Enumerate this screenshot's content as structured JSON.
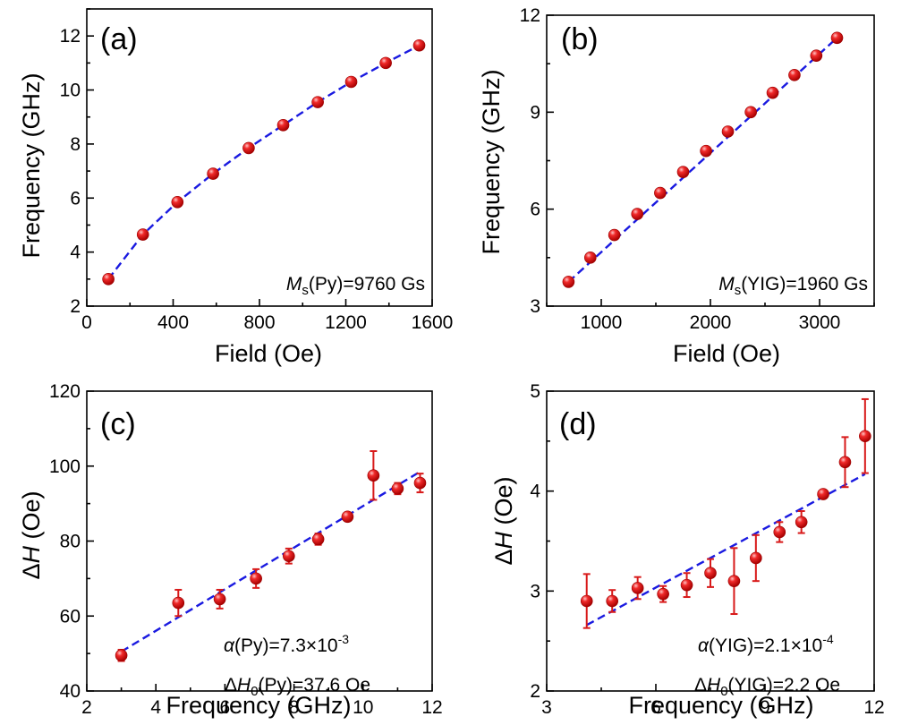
{
  "colors": {
    "marker": "#e01818",
    "marker_highlight": "#ffb0b0",
    "fit_line": "#1a1ae0",
    "axis": "#000000",
    "error_bar": "#d81a1a"
  },
  "chart_data": [
    {
      "id": "a",
      "type": "scatter",
      "panel_label": "(a)",
      "xlabel": "Field (Oe)",
      "ylabel": "Frequency (GHz)",
      "xlim": [
        0,
        1600
      ],
      "ylim": [
        2,
        13
      ],
      "xticks": [
        0,
        400,
        800,
        1200,
        1600
      ],
      "yticks": [
        2,
        4,
        6,
        8,
        10,
        12
      ],
      "x": [
        100,
        260,
        420,
        585,
        750,
        910,
        1070,
        1225,
        1385,
        1540
      ],
      "y": [
        3.0,
        4.65,
        5.85,
        6.9,
        7.85,
        8.7,
        9.55,
        10.3,
        11.0,
        11.65
      ],
      "fit": {
        "style": "dashed",
        "x": [
          100,
          260,
          420,
          585,
          750,
          910,
          1070,
          1225,
          1385,
          1540
        ],
        "y": [
          3.0,
          4.65,
          5.85,
          6.9,
          7.85,
          8.7,
          9.55,
          10.3,
          11.0,
          11.65
        ]
      },
      "annotation": {
        "symbol": "M",
        "subscript": "s",
        "rest": "(Py)=9760 Gs"
      }
    },
    {
      "id": "b",
      "type": "scatter",
      "panel_label": "(b)",
      "xlabel": "Field (Oe)",
      "ylabel": "Frequency (GHz)",
      "xlim": [
        500,
        3500
      ],
      "ylim": [
        3,
        12
      ],
      "xticks": [
        1000,
        2000,
        3000
      ],
      "yticks": [
        3,
        6,
        9,
        12
      ],
      "x": [
        700,
        900,
        1120,
        1330,
        1540,
        1750,
        1960,
        2160,
        2370,
        2570,
        2770,
        2970,
        3160
      ],
      "y": [
        3.75,
        4.5,
        5.2,
        5.85,
        6.5,
        7.15,
        7.8,
        8.4,
        9.0,
        9.6,
        10.15,
        10.75,
        11.3
      ],
      "fit": {
        "style": "dashed",
        "x": [
          700,
          3160
        ],
        "y": [
          3.75,
          11.3
        ]
      },
      "annotation": {
        "symbol": "M",
        "subscript": "s",
        "rest": "(YIG)=1960 Gs"
      }
    },
    {
      "id": "c",
      "type": "scatter",
      "panel_label": "(c)",
      "xlabel": "Frequency (GHz)",
      "ylabel": "ΔH (Oe)",
      "xlim": [
        2,
        12
      ],
      "ylim": [
        40,
        120
      ],
      "xticks": [
        2,
        4,
        6,
        8,
        10,
        12
      ],
      "yticks": [
        40,
        60,
        80,
        100,
        120
      ],
      "x": [
        3.0,
        4.65,
        5.85,
        6.9,
        7.85,
        8.7,
        9.55,
        10.3,
        11.0,
        11.65
      ],
      "y": [
        49.5,
        63.5,
        64.5,
        70.0,
        76.0,
        80.5,
        86.5,
        97.5,
        94.0,
        95.5
      ],
      "yerr": [
        1.5,
        3.5,
        2.5,
        2.5,
        2.0,
        1.5,
        1.0,
        6.5,
        1.5,
        2.5
      ],
      "fit": {
        "style": "dashed",
        "x": [
          3.0,
          11.65
        ],
        "y": [
          50.5,
          98.5
        ]
      },
      "annotation": {
        "line1": {
          "symbol": "α",
          "rest": "(Py)=7.3×10",
          "sup": "-3"
        },
        "line2": {
          "prefix": "Δ",
          "symbol": "H",
          "subscript": "0",
          "rest": "(Py)=37.6 Oe"
        }
      }
    },
    {
      "id": "d",
      "type": "scatter",
      "panel_label": "(d)",
      "xlabel": "Frequency (GHz)",
      "ylabel": "ΔH (Oe)",
      "xlim": [
        3,
        12
      ],
      "ylim": [
        2,
        5
      ],
      "xticks": [
        3,
        6,
        9,
        12
      ],
      "yticks": [
        2,
        3,
        4,
        5
      ],
      "x": [
        4.1,
        4.8,
        5.5,
        6.2,
        6.85,
        7.5,
        8.15,
        8.75,
        9.4,
        10.0,
        10.6,
        11.2,
        11.75
      ],
      "y": [
        2.9,
        2.9,
        3.03,
        2.97,
        3.06,
        3.18,
        3.1,
        3.33,
        3.59,
        3.69,
        3.97,
        4.29,
        4.55
      ],
      "yerr": [
        0.27,
        0.11,
        0.11,
        0.08,
        0.12,
        0.14,
        0.33,
        0.23,
        0.1,
        0.11,
        0.03,
        0.25,
        0.37
      ],
      "fit": {
        "style": "dashed",
        "x": [
          4.1,
          11.75
        ],
        "y": [
          2.66,
          4.17
        ]
      },
      "annotation": {
        "line1": {
          "symbol": "α",
          "rest": "(YIG)=2.1×10",
          "sup": "-4"
        },
        "line2": {
          "prefix": "Δ",
          "symbol": "H",
          "subscript": "0",
          "rest": "(YIG)=2.2 Oe"
        }
      }
    }
  ]
}
